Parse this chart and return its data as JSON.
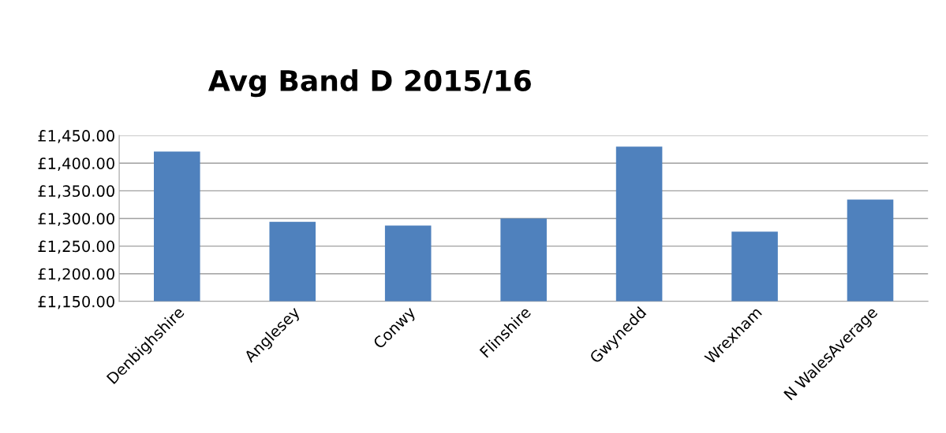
{
  "chart_data": {
    "type": "bar",
    "title": "Avg Band D 2015/16",
    "categories": [
      "Denbighshire",
      "Anglesey",
      "Conwy",
      "Flinshire",
      "Gwynedd",
      "Wrexham",
      "N WalesAverage"
    ],
    "values": [
      1421,
      1294,
      1287,
      1300,
      1430,
      1276,
      1334
    ],
    "color": "#4f81bd",
    "ylim": [
      1150,
      1450
    ],
    "yticks": [
      {
        "value": 1150,
        "label": "£1,150.00"
      },
      {
        "value": 1200,
        "label": "£1,200.00"
      },
      {
        "value": 1250,
        "label": "£1,250.00"
      },
      {
        "value": 1300,
        "label": "£1,300.00"
      },
      {
        "value": 1350,
        "label": "£1,350.00"
      },
      {
        "value": 1400,
        "label": "£1,400.00"
      },
      {
        "value": 1450,
        "label": "£1,450.00"
      }
    ],
    "grid": "y"
  }
}
